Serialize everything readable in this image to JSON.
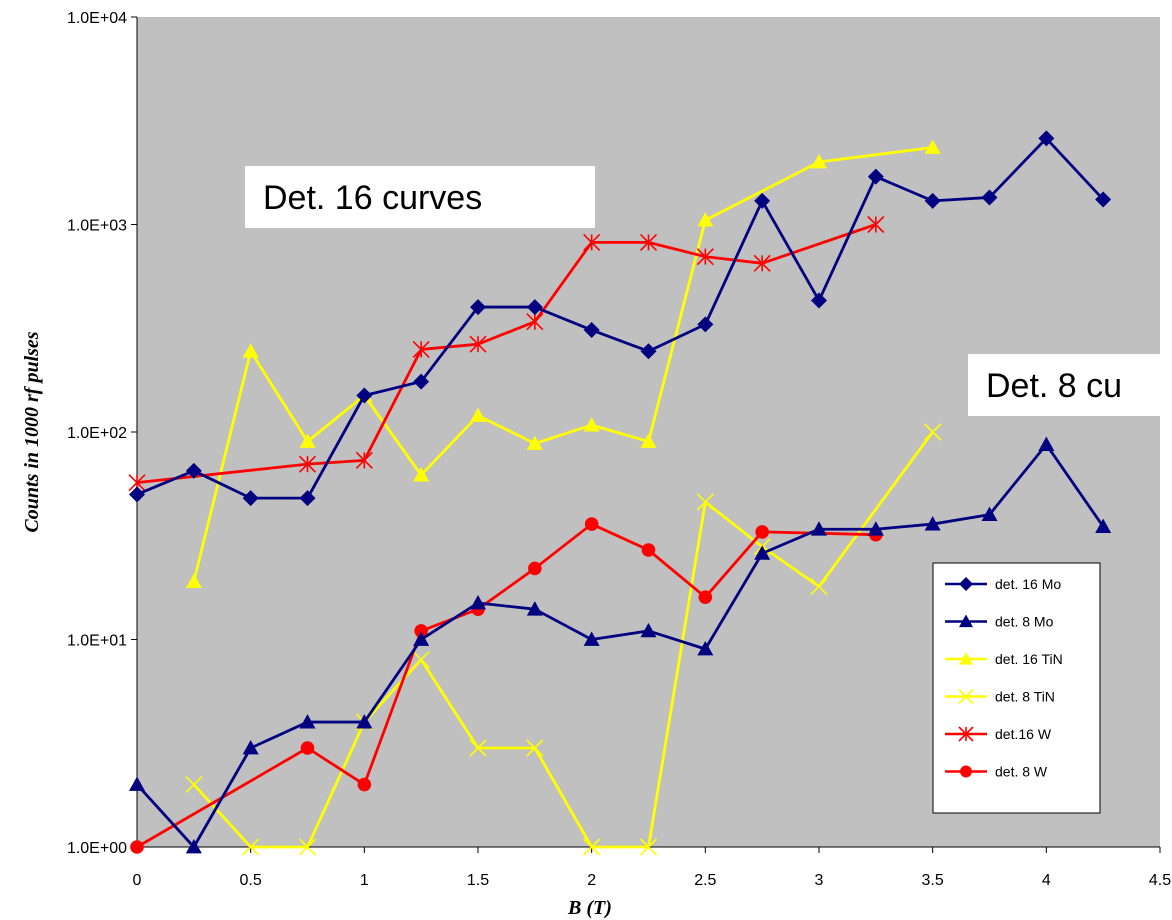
{
  "chart_data": {
    "type": "line",
    "xlabel": "B (T)",
    "ylabel": "Counts in  1000 rf pulses",
    "xlim": [
      0,
      4.5
    ],
    "ylim": [
      1,
      10000
    ],
    "yscale": "log",
    "grid": false,
    "plot_background": "#c0c0c0",
    "x_ticks": [
      0,
      0.5,
      1,
      1.5,
      2,
      2.5,
      3,
      3.5,
      4,
      4.5
    ],
    "x_tick_labels": [
      "0",
      "0.5",
      "1",
      "1.5",
      "2",
      "2.5",
      "3",
      "3.5",
      "4",
      "4.5"
    ],
    "y_ticks": [
      1,
      10,
      100,
      1000,
      10000
    ],
    "y_tick_labels": [
      "1.0E+00",
      "1.0E+01",
      "1.0E+02",
      "1.0E+03",
      "1.0E+04"
    ],
    "legend_position": "lower-right",
    "annotations": [
      {
        "text": "Det. 16 curves"
      },
      {
        "text": "Det. 8 cu"
      }
    ],
    "series": [
      {
        "name": "det. 16 Mo",
        "color": "#000080",
        "marker": "diamond",
        "x": [
          0,
          0.25,
          0.5,
          0.75,
          1,
          1.25,
          1.5,
          1.75,
          2,
          2.25,
          2.5,
          2.75,
          3,
          3.25,
          3.5,
          3.75,
          4,
          4.25
        ],
        "y": [
          50,
          65,
          48,
          48,
          150,
          175,
          400,
          400,
          310,
          245,
          330,
          1300,
          430,
          1700,
          1300,
          1350,
          2600,
          1320
        ]
      },
      {
        "name": "det. 8 Mo",
        "color": "#000080",
        "marker": "triangle",
        "x": [
          0,
          0.25,
          0.5,
          0.75,
          1,
          1.25,
          1.5,
          1.75,
          2,
          2.25,
          2.5,
          2.75,
          3,
          3.25,
          3.5,
          3.75,
          4,
          4.25
        ],
        "y": [
          2,
          1,
          3,
          4,
          4,
          10,
          15,
          14,
          10,
          11,
          9,
          26,
          34,
          34,
          36,
          40,
          87,
          35
        ]
      },
      {
        "name": "det. 16 TiN",
        "color": "#ffff00",
        "marker": "triangle",
        "x": [
          0.25,
          0.5,
          0.75,
          1,
          1.25,
          1.5,
          1.75,
          2,
          2.25,
          2.5,
          3,
          3.5
        ],
        "y": [
          19,
          245,
          90,
          150,
          62,
          120,
          88,
          108,
          90,
          1050,
          2000,
          2350
        ]
      },
      {
        "name": "det. 8 TiN",
        "color": "#ffff00",
        "marker": "x",
        "x": [
          0.25,
          0.5,
          0.75,
          1,
          1.25,
          1.5,
          1.75,
          2,
          2.25,
          2.5,
          2.75,
          3,
          3.5
        ],
        "y": [
          2,
          1,
          1,
          4,
          8,
          3,
          3,
          1,
          1,
          46,
          28,
          18,
          100
        ]
      },
      {
        "name": "det.16 W",
        "color": "#ff0000",
        "marker": "asterisk",
        "x": [
          0,
          0.75,
          1,
          1.25,
          1.5,
          1.75,
          2,
          2.25,
          2.5,
          2.75,
          3.25
        ],
        "y": [
          57,
          70,
          73,
          250,
          265,
          340,
          820,
          820,
          700,
          650,
          1000
        ]
      },
      {
        "name": "det. 8 W",
        "color": "#ff0000",
        "marker": "circle",
        "x": [
          0,
          0.75,
          1,
          1.25,
          1.5,
          1.75,
          2,
          2.25,
          2.5,
          2.75,
          3.25
        ],
        "y": [
          1,
          3,
          2,
          11,
          14,
          22,
          36,
          27,
          16,
          33,
          32
        ]
      }
    ]
  }
}
